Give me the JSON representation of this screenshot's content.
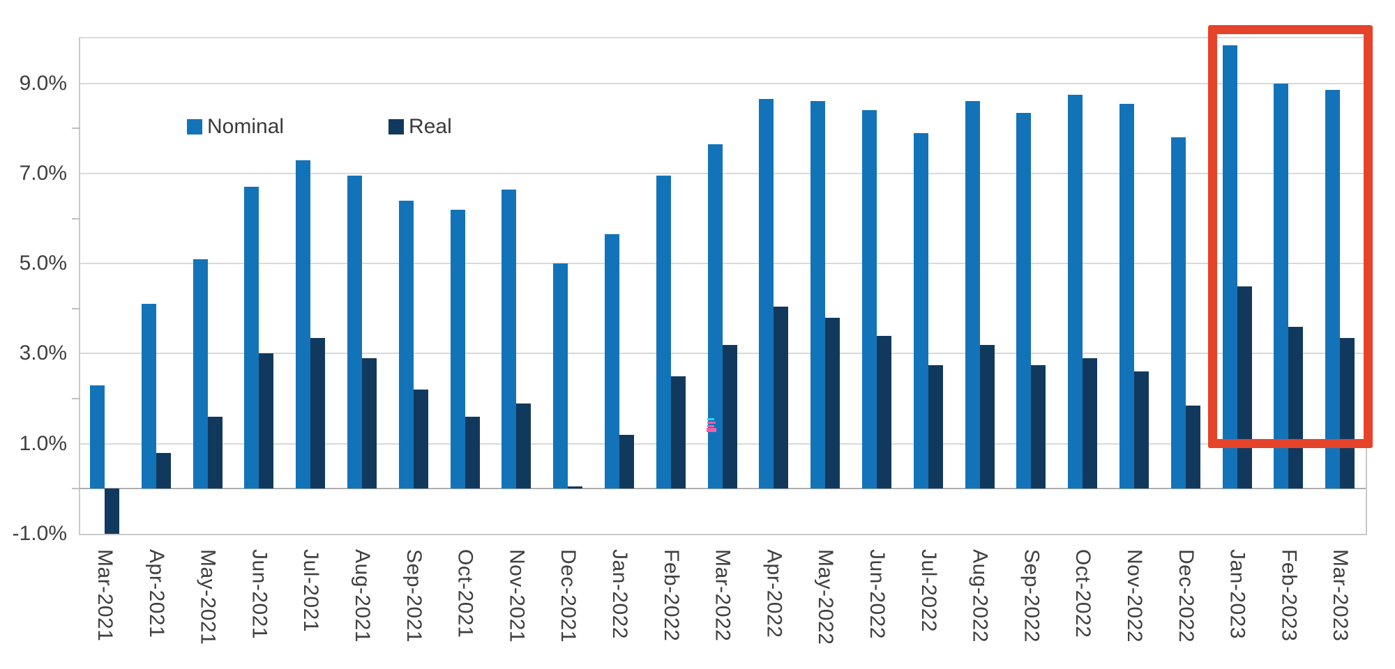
{
  "chart_data": {
    "type": "bar",
    "title": "",
    "categories": [
      "Mar-2021",
      "Apr-2021",
      "May-2021",
      "Jun-2021",
      "Jul-2021",
      "Aug-2021",
      "Sep-2021",
      "Oct-2021",
      "Nov-2021",
      "Dec-2021",
      "Jan-2022",
      "Feb-2022",
      "Mar-2022",
      "Apr-2022",
      "May-2022",
      "Jun-2022",
      "Jul-2022",
      "Aug-2022",
      "Sep-2022",
      "Oct-2022",
      "Nov-2022",
      "Dec-2022",
      "Jan-2023",
      "Feb-2023",
      "Mar-2023"
    ],
    "series": [
      {
        "name": "Nominal",
        "color": "#1373b9",
        "values": [
          2.3,
          4.1,
          5.1,
          6.7,
          7.3,
          6.95,
          6.4,
          6.2,
          6.65,
          5.0,
          5.65,
          6.95,
          7.65,
          8.65,
          8.6,
          8.4,
          7.9,
          8.6,
          8.35,
          8.75,
          8.55,
          7.8,
          9.85,
          9.0,
          8.85
        ]
      },
      {
        "name": "Real",
        "color": "#11395d",
        "values": [
          -1.0,
          0.8,
          1.6,
          3.0,
          3.35,
          2.9,
          2.2,
          1.6,
          1.9,
          0.05,
          1.2,
          2.5,
          3.2,
          4.05,
          3.8,
          3.4,
          2.75,
          3.2,
          2.75,
          2.9,
          2.6,
          1.85,
          4.5,
          3.6,
          3.35
        ]
      }
    ],
    "ylim": [
      -1,
      10
    ],
    "yticks": [
      {
        "label": "9.0%",
        "value": 9
      },
      {
        "label": "7.0%",
        "value": 7
      },
      {
        "label": "5.0%",
        "value": 5
      },
      {
        "label": "3.0%",
        "value": 3
      },
      {
        "label": "1.0%",
        "value": 1
      },
      {
        "label": "-1.0%",
        "value": -1
      }
    ],
    "minor_tick_values": [
      8,
      6,
      4,
      2,
      0
    ],
    "grid": "horizontal-major",
    "legend_position": "top-left-inside",
    "xlabel": "",
    "ylabel": "",
    "highlight_box": {
      "categories": [
        "Jan-2023",
        "Feb-2023",
        "Mar-2023"
      ],
      "color": "#e5432a"
    }
  },
  "legend": {
    "items": [
      {
        "label": "Nominal",
        "color": "#1373b9"
      },
      {
        "label": "Real",
        "color": "#11395d"
      }
    ]
  },
  "colors": {
    "nominal_bar": "#1373b9",
    "real_bar": "#11395d",
    "highlight_red": "#e5432a",
    "gridline": "#d9d9d9",
    "axis_text": "#3f3f3f",
    "artifact_cyan": "#35d3ec",
    "artifact_pink": "#f25fa8"
  }
}
